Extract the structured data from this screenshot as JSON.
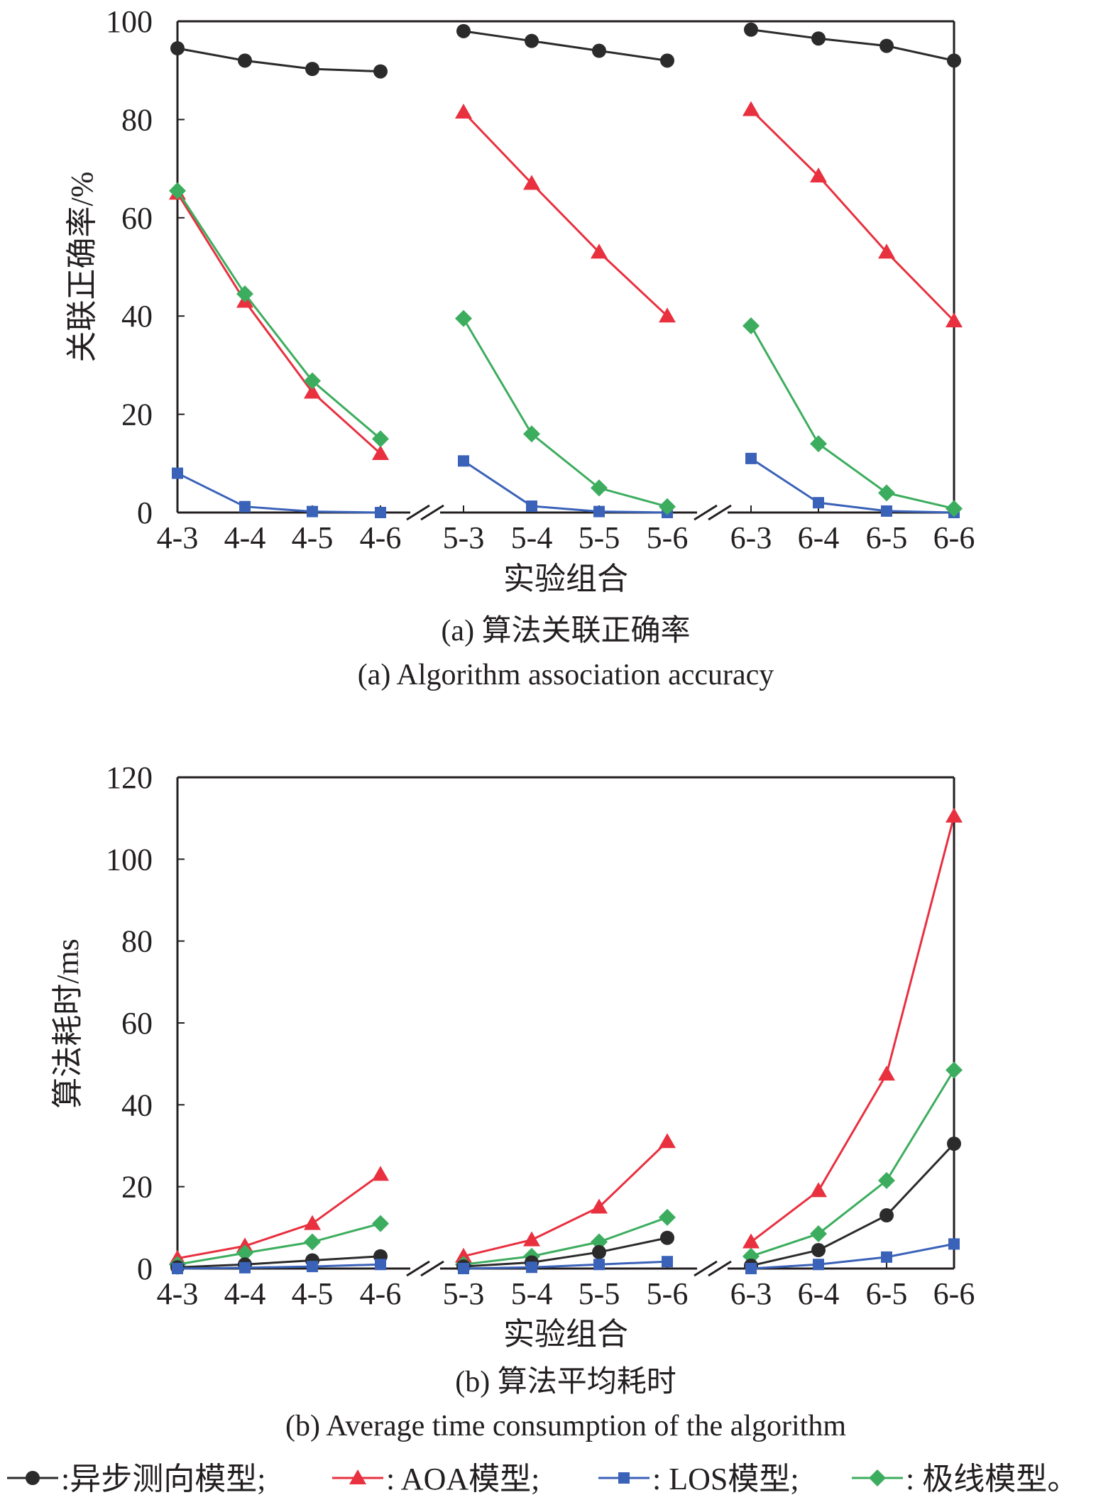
{
  "colors": {
    "black": "#2b2b2b",
    "red": "#e8303f",
    "blue": "#3a62b8",
    "green": "#3cad5e",
    "axis": "#231f20"
  },
  "legend": [
    {
      "key": "black",
      "marker": "circle",
      "label": ":异步测向模型;"
    },
    {
      "key": "red",
      "marker": "triangle",
      "label": ": AOA模型;"
    },
    {
      "key": "blue",
      "marker": "square",
      "label": ": LOS模型;"
    },
    {
      "key": "green",
      "marker": "diamond",
      "label": ": 极线模型。"
    }
  ],
  "chart_data": [
    {
      "type": "line",
      "id": "a",
      "title_zh": "(a) 算法关联正确率",
      "title_en": "(a) Algorithm association accuracy",
      "xlabel": "实验组合",
      "ylabel": "关联正确率/%",
      "ylim": [
        0,
        100
      ],
      "yticks": [
        0,
        20,
        40,
        60,
        80,
        100
      ],
      "groups": [
        [
          "4-3",
          "4-4",
          "4-5",
          "4-6"
        ],
        [
          "5-3",
          "5-4",
          "5-5",
          "5-6"
        ],
        [
          "6-3",
          "6-4",
          "6-5",
          "6-6"
        ]
      ],
      "series": [
        {
          "name": "异步测向模型",
          "key": "black",
          "marker": "circle",
          "values": [
            [
              94.5,
              92,
              90.3,
              89.8
            ],
            [
              98,
              96,
              94,
              92
            ],
            [
              98.3,
              96.5,
              95,
              92
            ]
          ]
        },
        {
          "name": "AOA模型",
          "key": "red",
          "marker": "triangle",
          "values": [
            [
              65,
              43,
              24.5,
              12
            ],
            [
              81.5,
              67,
              53,
              40
            ],
            [
              82,
              68.5,
              53,
              39
            ]
          ]
        },
        {
          "name": "LOS模型",
          "key": "blue",
          "marker": "square",
          "values": [
            [
              8,
              1.2,
              0.2,
              0
            ],
            [
              10.5,
              1.3,
              0.2,
              0
            ],
            [
              11,
              2,
              0.3,
              0
            ]
          ]
        },
        {
          "name": "极线模型",
          "key": "green",
          "marker": "diamond",
          "values": [
            [
              65.5,
              44.5,
              26.8,
              15
            ],
            [
              39.5,
              16,
              5,
              1.2
            ],
            [
              38,
              14,
              4,
              0.8
            ]
          ]
        }
      ]
    },
    {
      "type": "line",
      "id": "b",
      "title_zh": "(b) 算法平均耗时",
      "title_en": "(b) Average time consumption of the algorithm",
      "xlabel": "实验组合",
      "ylabel": "算法耗时/ms",
      "ylim": [
        0,
        120
      ],
      "yticks": [
        0,
        20,
        40,
        60,
        80,
        100,
        120
      ],
      "groups": [
        [
          "4-3",
          "4-4",
          "4-5",
          "4-6"
        ],
        [
          "5-3",
          "5-4",
          "5-5",
          "5-6"
        ],
        [
          "6-3",
          "6-4",
          "6-5",
          "6-6"
        ]
      ],
      "series": [
        {
          "name": "AOA模型",
          "key": "red",
          "marker": "triangle",
          "values": [
            [
              2.5,
              5.5,
              11,
              23
            ],
            [
              3,
              7,
              15,
              31
            ],
            [
              6.5,
              19,
              47.5,
              110.5
            ]
          ]
        },
        {
          "name": "极线模型",
          "key": "green",
          "marker": "diamond",
          "values": [
            [
              1,
              3.8,
              6.5,
              11
            ],
            [
              1,
              3,
              6.5,
              12.5
            ],
            [
              3,
              8.5,
              21.5,
              48.5
            ]
          ]
        },
        {
          "name": "异步测向模型",
          "key": "black",
          "marker": "circle",
          "values": [
            [
              0.3,
              1,
              2,
              3
            ],
            [
              0.5,
              1.5,
              4,
              7.5
            ],
            [
              0.7,
              4.5,
              13,
              30.5
            ]
          ]
        },
        {
          "name": "LOS模型",
          "key": "blue",
          "marker": "square",
          "values": [
            [
              0,
              0.2,
              0.5,
              1
            ],
            [
              0,
              0.3,
              1,
              1.7
            ],
            [
              0,
              1,
              2.8,
              6
            ]
          ]
        }
      ]
    }
  ]
}
